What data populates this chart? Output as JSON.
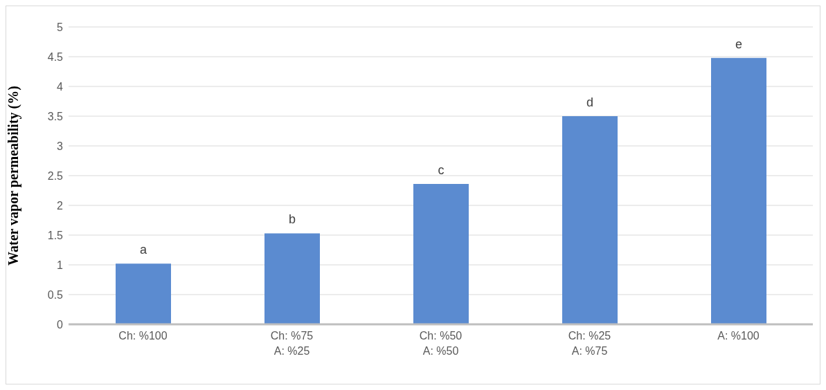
{
  "chart_data": {
    "type": "bar",
    "ylabel": "Water vapor permeability (%)",
    "categories": [
      "Ch: %100",
      "Ch: %75\nA: %25",
      "Ch: %50\nA: %50",
      "Ch: %25\nA: %75",
      "A: %100"
    ],
    "values": [
      1.02,
      1.53,
      2.36,
      3.5,
      4.48
    ],
    "value_labels": [
      "a",
      "b",
      "c",
      "d",
      "e"
    ],
    "color": "#5b8bd0",
    "ylim": [
      0,
      5
    ],
    "yticks": [
      0,
      0.5,
      1,
      1.5,
      2,
      2.5,
      3,
      3.5,
      4,
      4.5,
      5
    ],
    "grid": "y"
  }
}
